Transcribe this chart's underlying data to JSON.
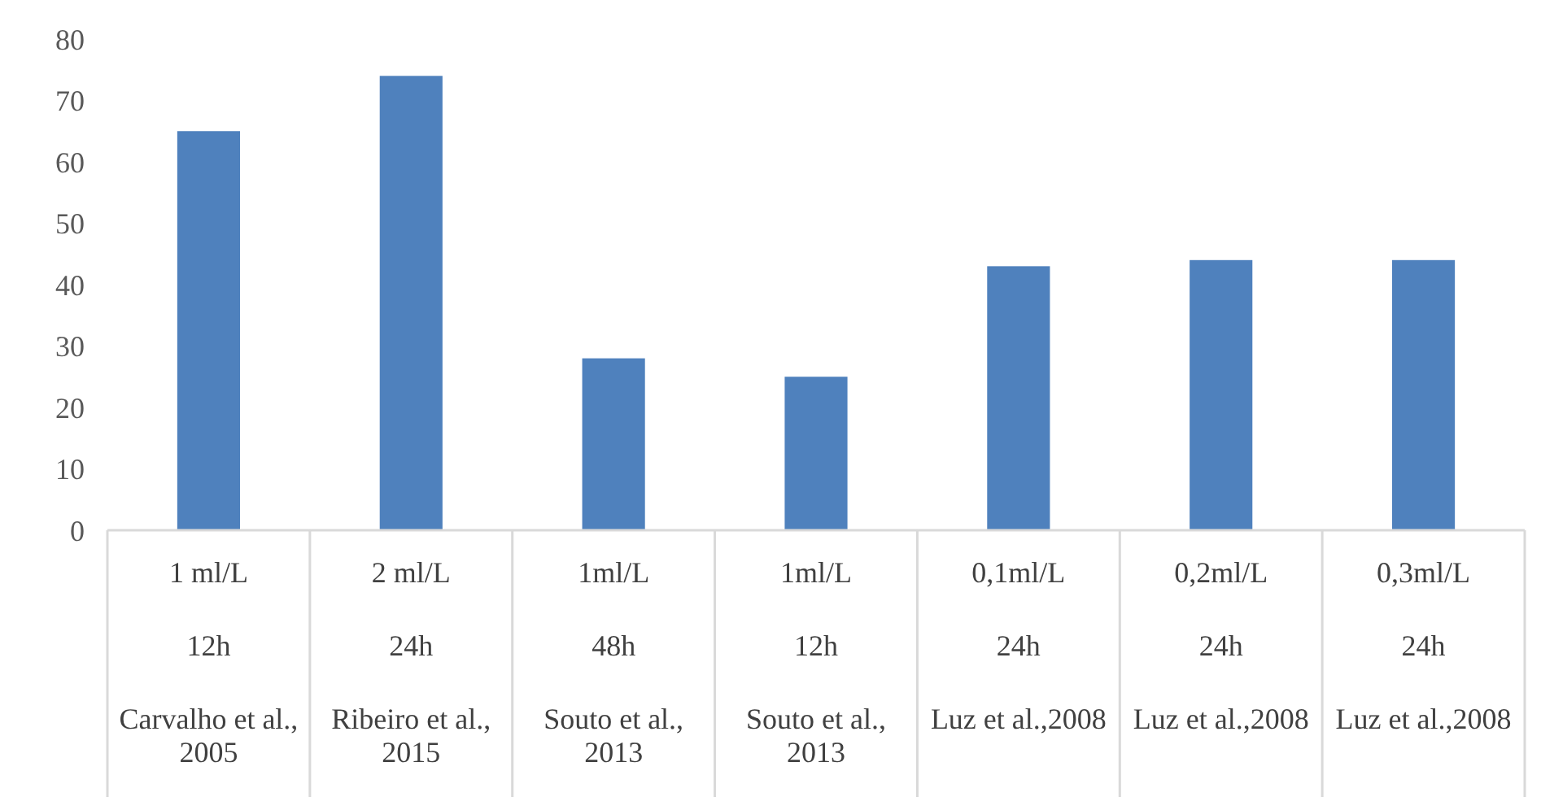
{
  "chart_data": {
    "type": "bar",
    "categories": [
      "1 ml/L\n12h\nCarvalho et al., 2005",
      "2 ml/L\n24h\nRibeiro et al., 2015",
      "1ml/L\n48h\nSouto et al., 2013",
      "1ml/L\n12h\nSouto et al., 2013",
      "0,1ml/L\n24h\nLuz et al.,2008",
      "0,2ml/L\n24h\nLuz et al.,2008",
      "0,3ml/L\n24h\nLuz et al.,2008"
    ],
    "values": [
      65,
      74,
      28,
      25,
      43,
      44,
      44
    ],
    "color": "#4f81bd",
    "ylim": [
      0,
      80
    ],
    "yticks": [
      0,
      10,
      20,
      30,
      40,
      50,
      60,
      70,
      80
    ],
    "grid": false
  }
}
